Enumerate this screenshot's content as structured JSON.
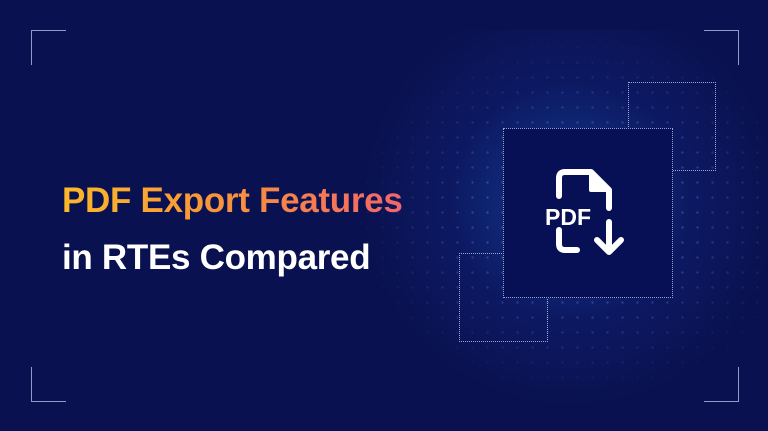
{
  "title": {
    "line1": "PDF Export Features",
    "line2": "in RTEs Compared",
    "gradient_colors": [
      "#fbb92a",
      "#f1656a"
    ]
  },
  "icon": {
    "name": "pdf-download-icon",
    "label": "PDF"
  },
  "colors": {
    "background": "#0a1150",
    "text": "#ffffff"
  }
}
